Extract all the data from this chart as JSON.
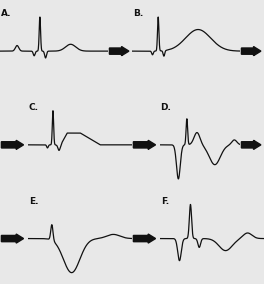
{
  "labels": [
    "A.",
    "B.",
    "C.",
    "D.",
    "E.",
    "F."
  ],
  "background_color": "#e8e8e8",
  "line_color": "#111111",
  "arrow_color": "#111111",
  "label_fontsize": 6.5,
  "figsize": [
    2.64,
    2.84
  ],
  "dpi": 100,
  "panels": [
    {
      "label": "A.",
      "col": 0,
      "row": 0,
      "left_arrow": false,
      "right_arrow": true
    },
    {
      "label": "B.",
      "col": 1,
      "row": 0,
      "left_arrow": false,
      "right_arrow": true
    },
    {
      "label": "C.",
      "col": 0,
      "row": 1,
      "left_arrow": true,
      "right_arrow": false
    },
    {
      "label": "D.",
      "col": 1,
      "row": 1,
      "left_arrow": true,
      "right_arrow": true
    },
    {
      "label": "E.",
      "col": 0,
      "row": 2,
      "left_arrow": true,
      "right_arrow": false
    },
    {
      "label": "F.",
      "col": 1,
      "row": 2,
      "left_arrow": true,
      "right_arrow": false
    }
  ]
}
